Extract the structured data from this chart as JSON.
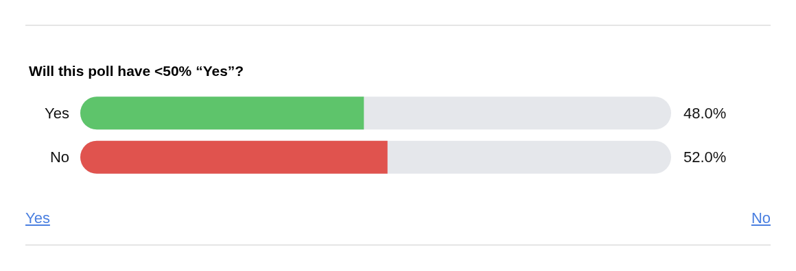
{
  "chart_data": {
    "type": "bar",
    "orientation": "horizontal",
    "title": "Will this poll have <50% “Yes”?",
    "categories": [
      "Yes",
      "No"
    ],
    "values": [
      48.0,
      52.0
    ],
    "colors": [
      "#5ec46b",
      "#e0534e"
    ],
    "value_labels": [
      "48.0%",
      "52.0%"
    ],
    "xlim": [
      0,
      100
    ],
    "tick_labels": "y",
    "annotations": [
      "Yes",
      "No"
    ]
  }
}
